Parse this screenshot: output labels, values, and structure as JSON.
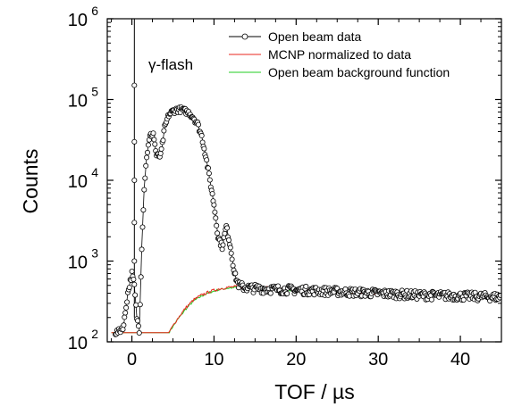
{
  "chart_data": {
    "type": "scatter",
    "xlabel": "TOF / µs",
    "ylabel": "Counts",
    "xlim": [
      -3,
      45
    ],
    "ylim": [
      100,
      1000000
    ],
    "y_scale": "log",
    "x_ticks": [
      0,
      10,
      20,
      30,
      40
    ],
    "x_tick_labels": [
      "0",
      "10",
      "20",
      "30",
      "40"
    ],
    "y_ticks": [
      100,
      1000,
      10000,
      100000,
      1000000
    ],
    "y_tick_labels": [
      {
        "base": "10",
        "exp": "2"
      },
      {
        "base": "10",
        "exp": "3"
      },
      {
        "base": "10",
        "exp": "4"
      },
      {
        "base": "10",
        "exp": "5"
      },
      {
        "base": "10",
        "exp": "6"
      }
    ],
    "grid": false,
    "legend_position": "top-right",
    "annotations": [
      {
        "text": "γ-flash",
        "x": 0.5,
        "y": 150000
      }
    ],
    "series": [
      {
        "name": "Open beam data",
        "color": "#000000",
        "marker": "open-circle",
        "x": [
          -2,
          -1.5,
          -1,
          -0.5,
          0,
          0.3,
          0.6,
          0.9,
          1.2,
          1.5,
          1.8,
          2.2,
          2.6,
          3.0,
          3.5,
          4.0,
          4.5,
          5.0,
          5.5,
          6.0,
          6.5,
          7.0,
          7.5,
          8.0,
          8.5,
          9.0,
          9.5,
          10.0,
          10.5,
          11.0,
          11.5,
          12.0,
          12.5,
          13.0,
          13.5,
          14.0,
          15,
          17,
          20,
          25,
          30,
          35,
          40,
          45
        ],
        "y": [
          130,
          135,
          160,
          400,
          700,
          500,
          200,
          140,
          1500,
          8000,
          20000,
          35000,
          38000,
          20000,
          20000,
          45000,
          65000,
          72000,
          75000,
          75000,
          72000,
          68000,
          60000,
          50000,
          35000,
          20000,
          10000,
          5000,
          2000,
          1500,
          2700,
          1500,
          700,
          500,
          480,
          470,
          460,
          450,
          440,
          420,
          400,
          380,
          370,
          360
        ]
      },
      {
        "name": "MCNP normalized to data",
        "color": "#e8261c",
        "marker": "none",
        "x": [
          -2.5,
          4.5,
          5.5,
          6.5,
          7.5,
          8.5,
          9.5,
          10.5,
          11.5,
          12.5,
          13.5,
          15,
          20,
          25,
          30,
          35,
          40,
          45
        ],
        "y": [
          130,
          130,
          190,
          260,
          330,
          380,
          420,
          450,
          470,
          480,
          480,
          475,
          440,
          410,
          395,
          385,
          375,
          365
        ]
      },
      {
        "name": "Open beam background function",
        "color": "#22cc22",
        "marker": "none",
        "x": [
          -2.5,
          4.5,
          5.5,
          6.5,
          7.5,
          8.5,
          9.5,
          10.5,
          11.5,
          12.5,
          13.5,
          15,
          20,
          25,
          30,
          35,
          40,
          45
        ],
        "y": [
          130,
          130,
          185,
          250,
          320,
          370,
          410,
          440,
          460,
          470,
          470,
          465,
          435,
          405,
          390,
          380,
          370,
          360
        ]
      }
    ]
  },
  "gamma_peak": {
    "x": 0.3,
    "y_base": 200,
    "y_top": 1000000,
    "marker_ys": [
      1000,
      3000,
      10000,
      30000,
      150000
    ]
  }
}
